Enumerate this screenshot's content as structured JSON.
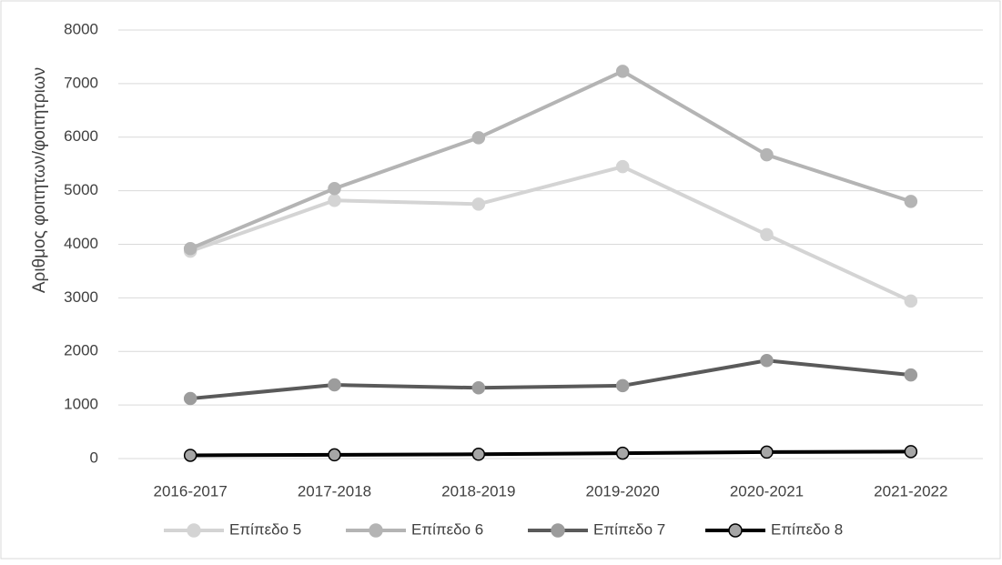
{
  "chart_data": {
    "type": "line",
    "y_label": "Αριθμος φοιτητων/φοιτητριων",
    "categories": [
      "2016-2017",
      "2017-2018",
      "2018-2019",
      "2019-2020",
      "2020-2021",
      "2021-2022"
    ],
    "series": [
      {
        "name": "Επίπεδο 5",
        "color": "#d4d4d4",
        "marker_color": "#d4d4d4",
        "values": [
          3870,
          4820,
          4750,
          5450,
          4180,
          2940
        ]
      },
      {
        "name": "Επίπεδο 6",
        "color": "#b4b4b4",
        "marker_color": "#b4b4b4",
        "values": [
          3920,
          5040,
          5990,
          7230,
          5670,
          4800
        ]
      },
      {
        "name": "Επίπεδο 7",
        "color": "#5a5a5a",
        "marker_color": "#9c9c9c",
        "values": [
          1120,
          1375,
          1320,
          1360,
          1830,
          1560
        ]
      },
      {
        "name": "Επίπεδο 8",
        "color": "#000000",
        "marker_color": "#a6a6a6",
        "values": [
          60,
          70,
          80,
          100,
          120,
          130
        ]
      }
    ],
    "ylim": [
      0,
      8000
    ],
    "yticks": [
      0,
      1000,
      2000,
      3000,
      4000,
      5000,
      6000,
      7000,
      8000
    ],
    "grid": true,
    "legend": "bottom"
  }
}
